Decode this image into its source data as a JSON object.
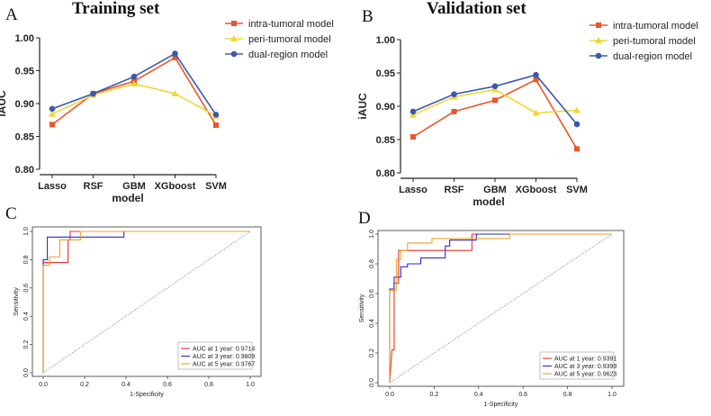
{
  "panels": {
    "a": {
      "letter": "A",
      "title": "Training  set"
    },
    "b": {
      "letter": "B",
      "title": "Validation  set"
    },
    "c": {
      "letter": "C"
    },
    "d": {
      "letter": "D"
    }
  },
  "colors": {
    "intra": "#e8572d",
    "peri": "#ecd83a",
    "dual": "#3d58a8",
    "roc1": "#e4342c",
    "roc3": "#2c2ccc",
    "roc5": "#e8a42c"
  },
  "chart_data": [
    {
      "type": "line",
      "title": "Training  set",
      "xlabel": "model",
      "ylabel": "iAUC",
      "categories": [
        "Lasso",
        "RSF",
        "GBM",
        "XGboost",
        "SVM"
      ],
      "ylim": [
        0.8,
        1.0
      ],
      "yticks": [
        "0.80",
        "0.85",
        "0.90",
        "0.95",
        "1.00"
      ],
      "legend_position": "top-right",
      "series": [
        {
          "name": "intra-tumoral  model",
          "color": "#e8572d",
          "marker": "square",
          "values": [
            0.868,
            0.915,
            0.934,
            0.97,
            0.867
          ]
        },
        {
          "name": "peri-tumoral  model",
          "color": "#ecd83a",
          "marker": "triangle",
          "values": [
            0.884,
            0.913,
            0.93,
            0.915,
            0.881
          ]
        },
        {
          "name": "dual-region   model",
          "color": "#3d58a8",
          "marker": "circle",
          "values": [
            0.892,
            0.915,
            0.941,
            0.976,
            0.883
          ]
        }
      ]
    },
    {
      "type": "line",
      "title": "Validation  set",
      "xlabel": "model",
      "ylabel": "iAUC",
      "categories": [
        "Lasso",
        "RSF",
        "GBM",
        "XGboost",
        "SVM"
      ],
      "ylim": [
        0.8,
        1.0
      ],
      "yticks": [
        "0.80",
        "0.85",
        "0.90",
        "0.95",
        "1.00"
      ],
      "legend_position": "top-right",
      "series": [
        {
          "name": "intra-tumoral  model",
          "color": "#e8572d",
          "marker": "square",
          "values": [
            0.854,
            0.892,
            0.909,
            0.94,
            0.836
          ]
        },
        {
          "name": "peri-tumoral  model",
          "color": "#ecd83a",
          "marker": "triangle",
          "values": [
            0.887,
            0.914,
            0.925,
            0.89,
            0.894
          ]
        },
        {
          "name": "dual-region   model",
          "color": "#3d58a8",
          "marker": "circle",
          "values": [
            0.892,
            0.918,
            0.93,
            0.947,
            0.873
          ]
        }
      ]
    },
    {
      "type": "line",
      "xlabel": "1-Specificity",
      "ylabel": "Sensitivity",
      "xlim": [
        0,
        1
      ],
      "ylim": [
        0,
        1
      ],
      "ticks": [
        "0.0",
        "0.2",
        "0.4",
        "0.6",
        "0.8",
        "1.0"
      ],
      "legend_position": "bottom-right",
      "series": [
        {
          "name": "AUC at 1 year: 0.9714",
          "color": "#e4342c",
          "points": [
            [
              0,
              0
            ],
            [
              0,
              0.78
            ],
            [
              0.12,
              0.78
            ],
            [
              0.12,
              0.94
            ],
            [
              0.13,
              0.94
            ],
            [
              0.13,
              1.0
            ],
            [
              1,
              1
            ]
          ]
        },
        {
          "name": "AUC at 3 year: 0.9809",
          "color": "#2c2ccc",
          "points": [
            [
              0,
              0
            ],
            [
              0,
              0.8
            ],
            [
              0.02,
              0.8
            ],
            [
              0.02,
              0.96
            ],
            [
              0.39,
              0.96
            ],
            [
              0.39,
              1.0
            ],
            [
              1,
              1
            ]
          ]
        },
        {
          "name": "AUC at 5 year: 0.9767",
          "color": "#e8a42c",
          "points": [
            [
              0,
              0
            ],
            [
              0,
              0.76
            ],
            [
              0.03,
              0.76
            ],
            [
              0.03,
              0.82
            ],
            [
              0.08,
              0.82
            ],
            [
              0.08,
              0.94
            ],
            [
              0.18,
              0.94
            ],
            [
              0.18,
              1.0
            ],
            [
              1,
              1
            ]
          ]
        }
      ],
      "reference_line": true
    },
    {
      "type": "line",
      "xlabel": "1-Specificity",
      "ylabel": "Sensitivity",
      "xlim": [
        0,
        1
      ],
      "ylim": [
        0,
        1
      ],
      "ticks": [
        "0.0",
        "0.2",
        "0.4",
        "0.6",
        "0.8",
        "1.0"
      ],
      "legend_position": "bottom-right",
      "series": [
        {
          "name": "AUC at 1 year: 0.9391",
          "color": "#e4342c",
          "points": [
            [
              0,
              0
            ],
            [
              0.01,
              0.22
            ],
            [
              0.02,
              0.22
            ],
            [
              0.02,
              0.67
            ],
            [
              0.04,
              0.67
            ],
            [
              0.04,
              0.89
            ],
            [
              0.37,
              0.89
            ],
            [
              0.37,
              1.0
            ],
            [
              1,
              1
            ]
          ]
        },
        {
          "name": "AUC at 3 year: 0.9399",
          "color": "#2c2ccc",
          "points": [
            [
              0,
              0
            ],
            [
              0,
              0.63
            ],
            [
              0.02,
              0.63
            ],
            [
              0.02,
              0.71
            ],
            [
              0.05,
              0.71
            ],
            [
              0.05,
              0.78
            ],
            [
              0.08,
              0.78
            ],
            [
              0.08,
              0.8
            ],
            [
              0.14,
              0.8
            ],
            [
              0.14,
              0.84
            ],
            [
              0.25,
              0.84
            ],
            [
              0.25,
              0.92
            ],
            [
              0.27,
              0.92
            ],
            [
              0.27,
              0.96
            ],
            [
              0.39,
              0.96
            ],
            [
              0.39,
              1.0
            ],
            [
              1,
              1
            ]
          ]
        },
        {
          "name": "AUC at 5 year: 0.9623",
          "color": "#e8a42c",
          "points": [
            [
              0,
              0
            ],
            [
              0,
              0.62
            ],
            [
              0.03,
              0.62
            ],
            [
              0.03,
              0.83
            ],
            [
              0.05,
              0.83
            ],
            [
              0.05,
              0.89
            ],
            [
              0.08,
              0.89
            ],
            [
              0.08,
              0.94
            ],
            [
              0.19,
              0.94
            ],
            [
              0.19,
              0.97
            ],
            [
              0.54,
              0.97
            ],
            [
              0.54,
              1.0
            ],
            [
              1,
              1
            ]
          ]
        }
      ],
      "reference_line": true
    }
  ]
}
